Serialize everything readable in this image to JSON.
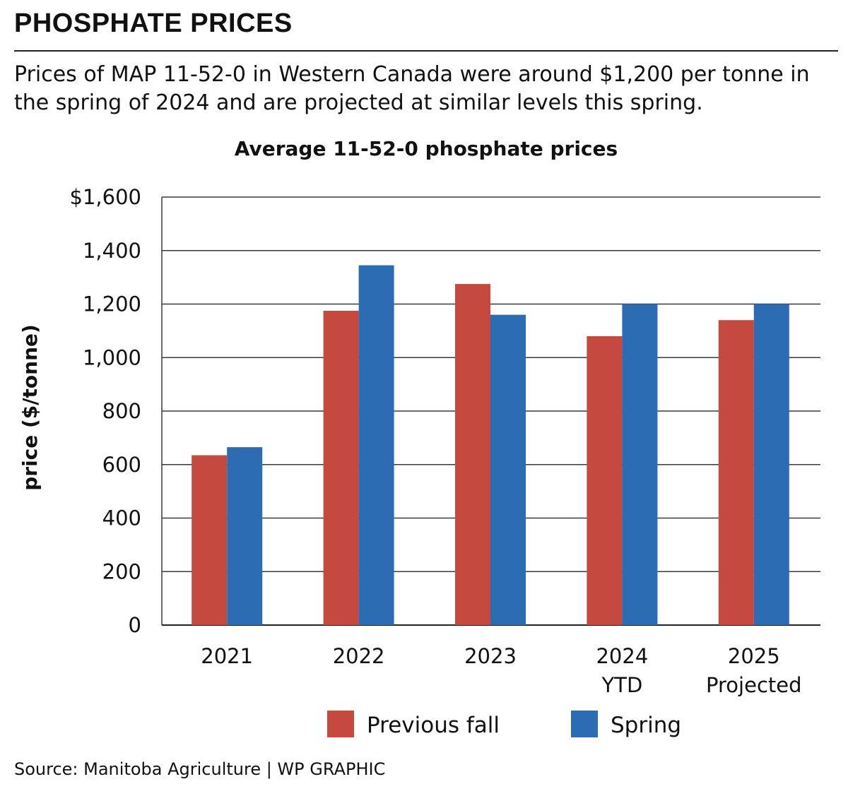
{
  "header": {
    "headline": "PHOSPHATE PRICES",
    "subtitle": "Prices of MAP 11-52-0 in Western Canada were around $1,200 per tonne in the spring of 2024 and are projected at similar levels this spring."
  },
  "footer": {
    "source": "Source: Manitoba Agriculture  |  WP GRAPHIC"
  },
  "chart_data": {
    "type": "bar",
    "title": "Average 11-52-0 phosphate prices",
    "xlabel": "",
    "ylabel": "price ($/tonne)",
    "categories": [
      "2021",
      "2022",
      "2023",
      "2024 YTD",
      "2025 Projected"
    ],
    "category_lines": [
      [
        "2021"
      ],
      [
        "2022"
      ],
      [
        "2023"
      ],
      [
        "2024",
        "YTD"
      ],
      [
        "2025",
        "Projected"
      ]
    ],
    "series": [
      {
        "name": "Previous fall",
        "color": "#c5493e",
        "values": [
          635,
          1175,
          1275,
          1080,
          1140
        ]
      },
      {
        "name": "Spring",
        "color": "#2b6cb3",
        "values": [
          665,
          1345,
          1160,
          1200,
          1200
        ]
      }
    ],
    "ylim": [
      0,
      1600
    ],
    "yticks": [
      0,
      200,
      400,
      600,
      800,
      1000,
      1200,
      1400,
      1600
    ],
    "ytick_labels": [
      "0",
      "200",
      "400",
      "600",
      "800",
      "1,000",
      "1,200",
      "1,400",
      "$1,600"
    ],
    "grid": true,
    "legend_position": "bottom-center"
  }
}
